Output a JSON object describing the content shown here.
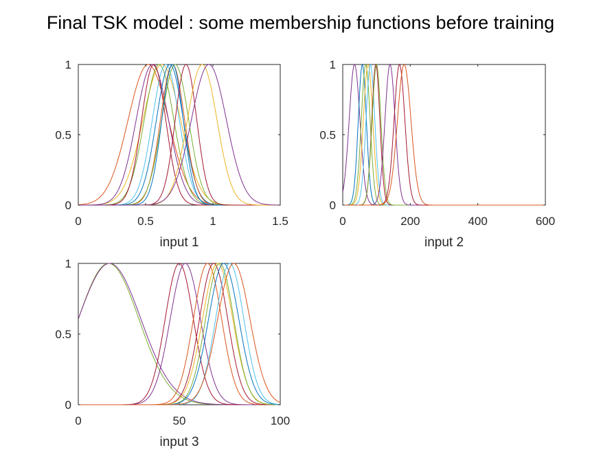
{
  "figure": {
    "title": "Final TSK model : some membership functions before training"
  },
  "chart_data": [
    {
      "type": "line",
      "xlabel": "input 1",
      "xlim": [
        0,
        1.5
      ],
      "ylim": [
        0,
        1
      ],
      "xticks": [
        "0",
        "0.5",
        "1",
        "1.5"
      ],
      "yticks": [
        "0",
        "0.5",
        "1"
      ],
      "grid": false,
      "series": [
        {
          "shape": "gaussian",
          "center": 0.52,
          "sigma": 0.15,
          "color": "#D95319"
        },
        {
          "shape": "gaussian",
          "center": 0.62,
          "sigma": 0.14,
          "color": "#EDB120"
        },
        {
          "shape": "gaussian",
          "center": 0.55,
          "sigma": 0.12,
          "color": "#7E2F8E"
        },
        {
          "shape": "gaussian",
          "center": 0.6,
          "sigma": 0.11,
          "color": "#77AC30"
        },
        {
          "shape": "gaussian",
          "center": 0.65,
          "sigma": 0.1,
          "color": "#4DBEEE"
        },
        {
          "shape": "gaussian",
          "center": 0.56,
          "sigma": 0.09,
          "color": "#A2142F"
        },
        {
          "shape": "gaussian",
          "center": 0.68,
          "sigma": 0.1,
          "color": "#0072BD"
        },
        {
          "shape": "gaussian",
          "center": 0.7,
          "sigma": 0.09,
          "color": "#D95319"
        },
        {
          "shape": "gaussian",
          "center": 0.72,
          "sigma": 0.1,
          "color": "#77AC30"
        },
        {
          "shape": "gaussian",
          "center": 0.7,
          "sigma": 0.08,
          "color": "#0072BD"
        },
        {
          "shape": "gaussian",
          "center": 0.8,
          "sigma": 0.08,
          "color": "#A2142F"
        },
        {
          "shape": "gaussian",
          "center": 0.92,
          "sigma": 0.11,
          "color": "#EDB120"
        },
        {
          "shape": "gaussian",
          "center": 0.97,
          "sigma": 0.13,
          "color": "#7E2F8E"
        }
      ]
    },
    {
      "type": "line",
      "xlabel": "input 2",
      "xlim": [
        0,
        600
      ],
      "ylim": [
        0,
        1
      ],
      "xticks": [
        "0",
        "200",
        "400",
        "600"
      ],
      "yticks": [
        "0",
        "0.5",
        "1"
      ],
      "grid": false,
      "series": [
        {
          "shape": "gaussian",
          "center": 35,
          "sigma": 16,
          "color": "#7E2F8E"
        },
        {
          "shape": "gaussian",
          "center": 58,
          "sigma": 12,
          "color": "#0072BD"
        },
        {
          "shape": "gaussian",
          "center": 68,
          "sigma": 13,
          "color": "#77AC30"
        },
        {
          "shape": "gaussian",
          "center": 75,
          "sigma": 14,
          "color": "#EDB120"
        },
        {
          "shape": "gaussian",
          "center": 82,
          "sigma": 13,
          "color": "#4DBEEE"
        },
        {
          "shape": "gaussian",
          "center": 98,
          "sigma": 12,
          "color": "#A2142F"
        },
        {
          "shape": "gaussian",
          "center": 100,
          "sigma": 13,
          "color": "#77AC30"
        },
        {
          "shape": "gaussian",
          "center": 140,
          "sigma": 15,
          "color": "#7E2F8E"
        },
        {
          "shape": "gaussian",
          "center": 168,
          "sigma": 16,
          "color": "#A2142F"
        },
        {
          "shape": "gaussian",
          "center": 182,
          "sigma": 20,
          "color": "#D95319"
        }
      ]
    },
    {
      "type": "line",
      "xlabel": "input 3",
      "xlim": [
        0,
        100
      ],
      "ylim": [
        0,
        1
      ],
      "xticks": [
        "0",
        "50",
        "100"
      ],
      "yticks": [
        "0",
        "0.5",
        "1"
      ],
      "grid": false,
      "series": [
        {
          "shape": "gaussian",
          "center": 15,
          "sigma": 15,
          "color": "#77AC30"
        },
        {
          "shape": "gaussian",
          "center": 15.5,
          "sigma": 15.5,
          "color": "#7E2F8E"
        },
        {
          "shape": "gaussian",
          "center": 50,
          "sigma": 7,
          "color": "#A2142F"
        },
        {
          "shape": "gaussian",
          "center": 53,
          "sigma": 7.5,
          "color": "#7E2F8E"
        },
        {
          "shape": "gaussian",
          "center": 64,
          "sigma": 7,
          "color": "#D95319"
        },
        {
          "shape": "gaussian",
          "center": 67,
          "sigma": 7,
          "color": "#A2142F"
        },
        {
          "shape": "gaussian",
          "center": 69,
          "sigma": 7.5,
          "color": "#EDB120"
        },
        {
          "shape": "gaussian",
          "center": 70,
          "sigma": 7,
          "color": "#77AC30"
        },
        {
          "shape": "gaussian",
          "center": 72,
          "sigma": 7.5,
          "color": "#0072BD"
        },
        {
          "shape": "gaussian",
          "center": 75,
          "sigma": 7,
          "color": "#4DBEEE"
        },
        {
          "shape": "gaussian",
          "center": 77,
          "sigma": 8,
          "color": "#D95319"
        }
      ]
    }
  ]
}
